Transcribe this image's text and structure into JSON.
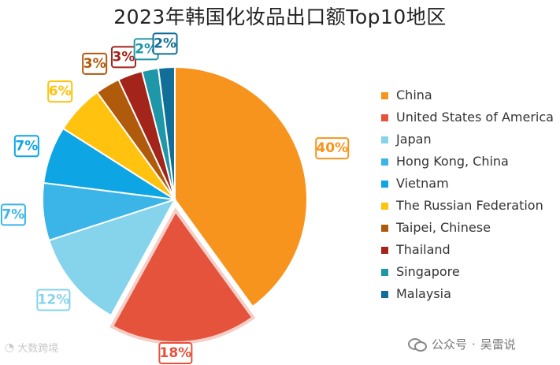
{
  "chart_data": {
    "type": "pie",
    "title": "2023年韩国化妆品出口额Top10地区",
    "start_angle_deg": 0,
    "direction": "clockwise",
    "legend_position": "right",
    "slices": [
      {
        "name": "China",
        "value": 40,
        "label": "40%",
        "color": "#F7941D",
        "exploded": false
      },
      {
        "name": "United States of America",
        "value": 18,
        "label": "18%",
        "color": "#E5533D",
        "exploded": true
      },
      {
        "name": "Japan",
        "value": 12,
        "label": "12%",
        "color": "#86D3EC",
        "exploded": false
      },
      {
        "name": "Hong Kong, China",
        "value": 7,
        "label": "7%",
        "color": "#3BB5E8",
        "exploded": false
      },
      {
        "name": "Vietnam",
        "value": 7,
        "label": "7%",
        "color": "#0EA5E4",
        "exploded": false
      },
      {
        "name": "The Russian Federation",
        "value": 6,
        "label": "6%",
        "color": "#FFC20E",
        "exploded": false
      },
      {
        "name": "Taipei, Chinese",
        "value": 3,
        "label": "3%",
        "color": "#B05A0C",
        "exploded": false
      },
      {
        "name": "Thailand",
        "value": 3,
        "label": "3%",
        "color": "#A3241B",
        "exploded": false
      },
      {
        "name": "Singapore",
        "value": 2,
        "label": "2%",
        "color": "#1E97A8",
        "exploded": false
      },
      {
        "name": "Malaysia",
        "value": 2,
        "label": "2%",
        "color": "#116E98",
        "exploded": false
      }
    ]
  },
  "watermarks": {
    "left": "大数跨境",
    "right_source": "公众号",
    "right_sep": "·",
    "right_author": "吴雷说"
  }
}
